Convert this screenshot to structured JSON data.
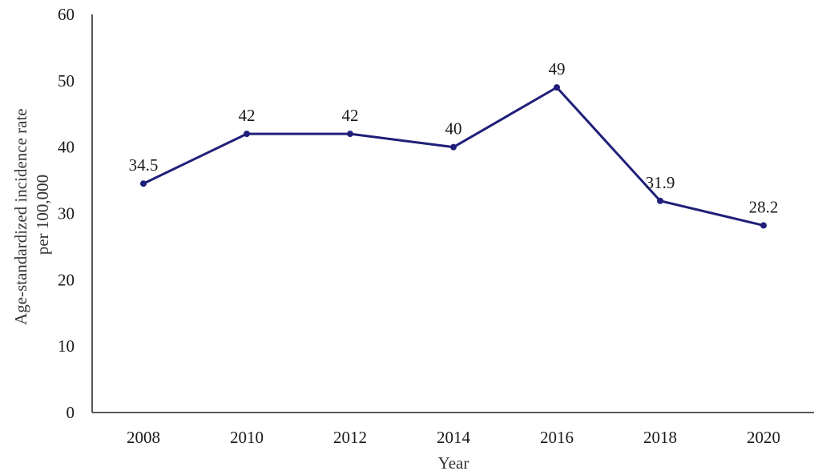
{
  "chart_data": {
    "type": "line",
    "title": "",
    "xlabel": "Year",
    "ylabel_lines": [
      "Age-standardized  incidence rate",
      "per 100,000"
    ],
    "categories": [
      "2008",
      "2010",
      "2012",
      "2014",
      "2016",
      "2018",
      "2020"
    ],
    "series": [
      {
        "values": [
          34.5,
          42,
          42,
          40,
          49,
          31.9,
          28.2
        ],
        "labels": [
          "34.5",
          "42",
          "42",
          "40",
          "49",
          "31.9",
          "28.2"
        ],
        "color": "#1f1f7a"
      }
    ],
    "ylim": [
      0,
      60
    ],
    "yticks": [
      "0",
      "10",
      "20",
      "30",
      "40",
      "50",
      "60"
    ],
    "grid": false,
    "legend": "none"
  }
}
